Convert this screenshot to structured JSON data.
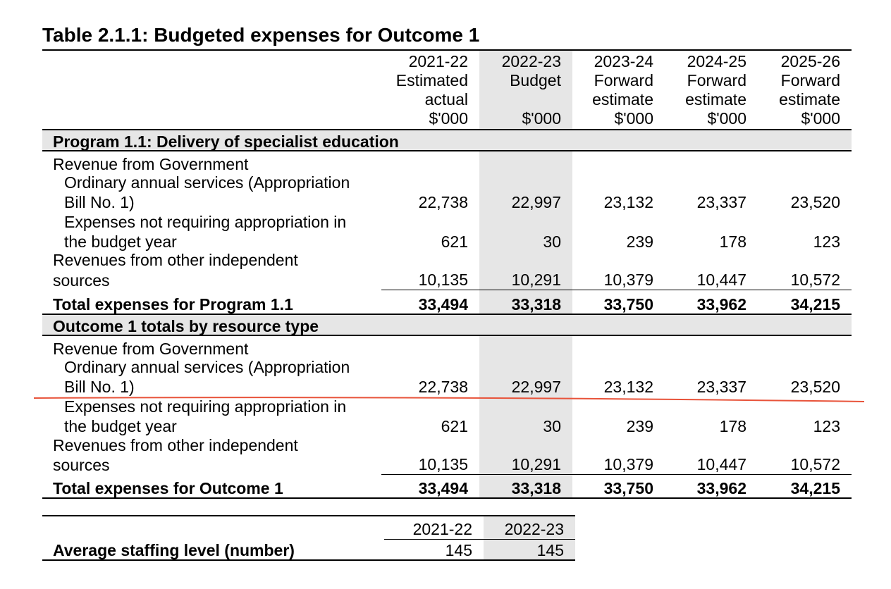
{
  "title": "Table 2.1.1: Budgeted expenses for Outcome 1",
  "columns": [
    {
      "year": "2021-22",
      "line2": "Estimated",
      "line3": "actual",
      "unit": "$'000"
    },
    {
      "year": "2022-23",
      "line2": "Budget",
      "line3": "",
      "unit": "$'000"
    },
    {
      "year": "2023-24",
      "line2": "Forward",
      "line3": "estimate",
      "unit": "$'000"
    },
    {
      "year": "2024-25",
      "line2": "Forward",
      "line3": "estimate",
      "unit": "$'000"
    },
    {
      "year": "2025-26",
      "line2": "Forward",
      "line3": "estimate",
      "unit": "$'000"
    }
  ],
  "sections": [
    {
      "heading": "Program 1.1: Delivery of specialist education",
      "revenue_label": "Revenue from Government",
      "rows": [
        {
          "label1": "Ordinary annual services (Appropriation",
          "label2": "Bill No. 1)",
          "values": [
            "22,738",
            "22,997",
            "23,132",
            "23,337",
            "23,520"
          ]
        },
        {
          "label1": "Expenses not requiring appropriation in",
          "label2": "the budget year",
          "values": [
            "621",
            "30",
            "239",
            "178",
            "123"
          ]
        },
        {
          "label1": "Revenues from other independent",
          "label2": "sources",
          "values": [
            "10,135",
            "10,291",
            "10,379",
            "10,447",
            "10,572"
          ]
        }
      ],
      "total_label": "Total expenses for Program 1.1",
      "total_values": [
        "33,494",
        "33,318",
        "33,750",
        "33,962",
        "34,215"
      ]
    },
    {
      "heading": "Outcome 1 totals by resource type",
      "revenue_label": "Revenue from Government",
      "rows": [
        {
          "label1": "Ordinary annual services (Appropriation",
          "label2": "Bill No. 1)",
          "values": [
            "22,738",
            "22,997",
            "23,132",
            "23,337",
            "23,520"
          ]
        },
        {
          "label1": "Expenses not requiring appropriation in",
          "label2": "the budget year",
          "values": [
            "621",
            "30",
            "239",
            "178",
            "123"
          ]
        },
        {
          "label1": "Revenues from other independent",
          "label2": "sources",
          "values": [
            "10,135",
            "10,291",
            "10,379",
            "10,447",
            "10,572"
          ]
        }
      ],
      "total_label": "Total expenses for Outcome 1",
      "total_values": [
        "33,494",
        "33,318",
        "33,750",
        "33,962",
        "34,215"
      ]
    }
  ],
  "staffing": {
    "years": [
      "2021-22",
      "2022-23"
    ],
    "label": "Average staffing level (number)",
    "values": [
      "145",
      "145"
    ]
  },
  "annotation_color": "#e8533a",
  "shade_color": "#e6e6e6"
}
